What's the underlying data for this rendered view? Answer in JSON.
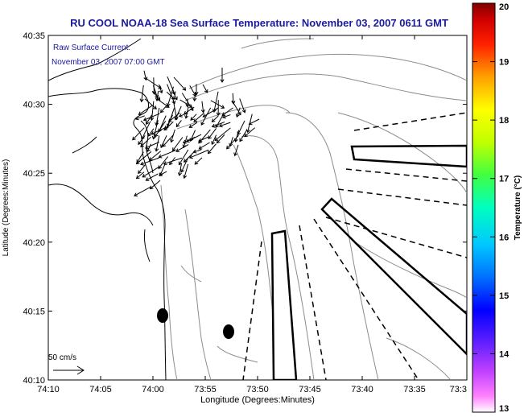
{
  "title": "RU COOL  NOAA-18  Sea Surface Temperature:  November 03, 2007 0611 GMT",
  "annotation": {
    "line1": "Raw Surface Current:",
    "line2": "November 03, 2007 07:00 GMT"
  },
  "scale_label": "50 cm/s",
  "axes": {
    "xlabel": "Longitude (Degrees:Minutes)",
    "ylabel": "Latitude (Degrees:Minutes)",
    "x_ticks": [
      "74:10",
      "74:05",
      "74:00",
      "73:55",
      "73:50",
      "73:45",
      "73:40",
      "73:35",
      "73:3"
    ],
    "y_ticks": [
      "40:35",
      "40:30",
      "40:25",
      "40:20",
      "40:15",
      "40:10"
    ]
  },
  "colorbar": {
    "label": "Temperature (°C)",
    "ticks": [
      "20",
      "19",
      "18",
      "17",
      "16",
      "15",
      "14",
      "13"
    ],
    "range": [
      13,
      20
    ]
  },
  "colors": {
    "title": "#1a1aa0",
    "annotation": "#1a1aa0",
    "coast": "#000000",
    "bathymetry": "#8c8c8c"
  }
}
